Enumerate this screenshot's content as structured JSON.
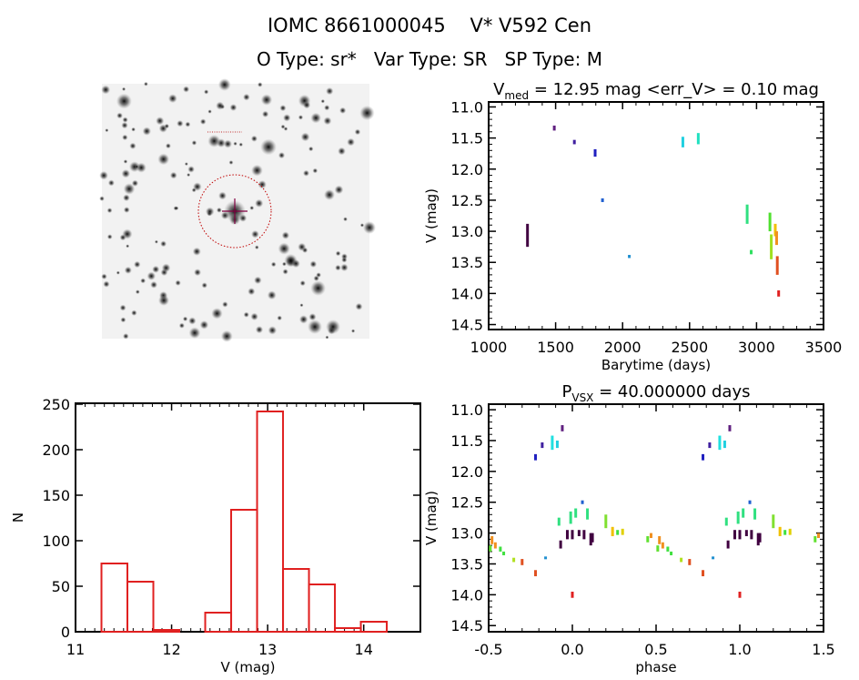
{
  "header": {
    "title": "IOMC 8661000045    V* V592 Cen",
    "subtitle": "O Type: sr*   Var Type: SR   SP Type: M"
  },
  "finder_image": {
    "description_colors": {
      "circle": "#c00000",
      "crosshair": "#800040"
    }
  },
  "chart_data": [
    {
      "type": "bar",
      "id": "histogram",
      "xlabel": "V (mag)",
      "ylabel": "N",
      "xlim": [
        11,
        14.59
      ],
      "ylim": [
        0,
        251
      ],
      "xticks": [
        "11",
        "12",
        "13",
        "14"
      ],
      "yticks": [
        "0",
        "50",
        "100",
        "150",
        "200",
        "250"
      ],
      "bin_edges": [
        11.27,
        11.54,
        11.81,
        12.08,
        12.35,
        12.62,
        12.89,
        13.16,
        13.43,
        13.7,
        13.97,
        14.24
      ],
      "values": [
        75,
        55,
        2,
        0,
        21,
        134,
        242,
        69,
        52,
        4,
        11
      ],
      "color": "#e02020"
    },
    {
      "type": "scatter",
      "id": "lightcurve",
      "title_main": "V",
      "title_sub": "med",
      "title_rest": " = 12.95 mag <err_V> = 0.10 mag",
      "xlabel": "Barytime (days)",
      "ylabel": "V (mag)",
      "xlim": [
        1000,
        3500
      ],
      "ylim": [
        10.92,
        14.58
      ],
      "y_inverted": true,
      "xticks": [
        "1000",
        "1500",
        "2000",
        "2500",
        "3000",
        "3500"
      ],
      "yticks": [
        "11.0",
        "11.5",
        "12.0",
        "12.5",
        "13.0",
        "13.5",
        "14.0",
        "14.5"
      ],
      "points": [
        {
          "t": 1290,
          "vmin": 12.88,
          "vmax": 13.25,
          "color": "#400040"
        },
        {
          "t": 1490,
          "vmin": 11.3,
          "vmax": 11.38,
          "color": "#602080"
        },
        {
          "t": 1640,
          "vmin": 11.53,
          "vmax": 11.6,
          "color": "#4020a0"
        },
        {
          "t": 1795,
          "vmin": 11.68,
          "vmax": 11.8,
          "color": "#2020c0"
        },
        {
          "t": 1850,
          "vmin": 12.47,
          "vmax": 12.53,
          "color": "#2060d0"
        },
        {
          "t": 2050,
          "vmin": 13.38,
          "vmax": 13.43,
          "color": "#2090d0"
        },
        {
          "t": 2450,
          "vmin": 11.48,
          "vmax": 11.65,
          "color": "#20d0e0"
        },
        {
          "t": 2565,
          "vmin": 11.42,
          "vmax": 11.6,
          "color": "#20e0c0"
        },
        {
          "t": 2930,
          "vmin": 12.57,
          "vmax": 12.88,
          "color": "#30e080"
        },
        {
          "t": 2960,
          "vmin": 13.3,
          "vmax": 13.37,
          "color": "#30e060"
        },
        {
          "t": 3100,
          "vmin": 12.7,
          "vmax": 13.0,
          "color": "#50e030"
        },
        {
          "t": 3110,
          "vmin": 13.05,
          "vmax": 13.45,
          "color": "#a0e020"
        },
        {
          "t": 3140,
          "vmin": 12.88,
          "vmax": 13.08,
          "color": "#f0c000"
        },
        {
          "t": 3150,
          "vmin": 13.0,
          "vmax": 13.22,
          "color": "#f09020"
        },
        {
          "t": 3155,
          "vmin": 13.4,
          "vmax": 13.7,
          "color": "#e05020"
        },
        {
          "t": 3165,
          "vmin": 13.95,
          "vmax": 14.05,
          "color": "#e02020"
        }
      ]
    },
    {
      "type": "scatter",
      "id": "phased",
      "title_main": "P",
      "title_sub": "VSX",
      "title_rest": " = 40.000000 days",
      "xlabel": "phase",
      "ylabel": "V (mag)",
      "xlim": [
        -0.5,
        1.5
      ],
      "ylim": [
        10.91,
        14.6
      ],
      "y_inverted": true,
      "xticks": [
        "-0.5",
        "0.0",
        "0.5",
        "1.0",
        "1.5"
      ],
      "yticks": [
        "11.0",
        "11.5",
        "12.0",
        "12.5",
        "13.0",
        "13.5",
        "14.0",
        "14.5"
      ],
      "points": [
        {
          "p": 0.78,
          "vmin": 11.72,
          "vmax": 11.82,
          "color": "#2020c0"
        },
        {
          "p": 0.82,
          "vmin": 11.53,
          "vmax": 11.62,
          "color": "#4020a0"
        },
        {
          "p": 0.88,
          "vmin": 11.42,
          "vmax": 11.65,
          "color": "#20e0e0"
        },
        {
          "p": 0.91,
          "vmin": 11.5,
          "vmax": 11.62,
          "color": "#20d0e0"
        },
        {
          "p": 0.94,
          "vmin": 11.25,
          "vmax": 11.35,
          "color": "#602080"
        },
        {
          "p": 0.84,
          "vmin": 13.38,
          "vmax": 13.42,
          "color": "#2090d0"
        },
        {
          "p": 0.06,
          "vmin": 12.47,
          "vmax": 12.53,
          "color": "#2060d0"
        },
        {
          "p": 0.93,
          "vmin": 13.12,
          "vmax": 13.25,
          "color": "#400040"
        },
        {
          "p": 0.97,
          "vmin": 12.95,
          "vmax": 13.1,
          "color": "#400040"
        },
        {
          "p": 0.0,
          "vmin": 12.95,
          "vmax": 13.1,
          "color": "#400040"
        },
        {
          "p": 0.04,
          "vmin": 12.95,
          "vmax": 13.05,
          "color": "#400040"
        },
        {
          "p": 0.07,
          "vmin": 12.95,
          "vmax": 13.1,
          "color": "#400040"
        },
        {
          "p": 0.11,
          "vmin": 13.0,
          "vmax": 13.2,
          "color": "#400040"
        },
        {
          "p": 0.12,
          "vmin": 13.0,
          "vmax": 13.15,
          "color": "#400040"
        },
        {
          "p": 0.92,
          "vmin": 12.75,
          "vmax": 12.88,
          "color": "#30e080"
        },
        {
          "p": 0.99,
          "vmin": 12.65,
          "vmax": 12.85,
          "color": "#30e080"
        },
        {
          "p": 0.02,
          "vmin": 12.6,
          "vmax": 12.75,
          "color": "#30e080"
        },
        {
          "p": 0.09,
          "vmin": 12.6,
          "vmax": 12.78,
          "color": "#30e080"
        },
        {
          "p": 0.0,
          "vmin": 13.95,
          "vmax": 14.05,
          "color": "#e02020"
        },
        {
          "p": 0.2,
          "vmin": 12.7,
          "vmax": 12.92,
          "color": "#80e030"
        },
        {
          "p": 0.24,
          "vmin": 12.9,
          "vmax": 13.05,
          "color": "#f0c000"
        },
        {
          "p": 0.27,
          "vmin": 12.95,
          "vmax": 13.03,
          "color": "#40e040"
        },
        {
          "p": 0.3,
          "vmin": 12.93,
          "vmax": 13.03,
          "color": "#e0d000"
        },
        {
          "p": 0.45,
          "vmin": 13.05,
          "vmax": 13.15,
          "color": "#60e030"
        },
        {
          "p": 0.47,
          "vmin": 13.0,
          "vmax": 13.08,
          "color": "#f09020"
        },
        {
          "p": 0.52,
          "vmin": 13.05,
          "vmax": 13.18,
          "color": "#f09020"
        },
        {
          "p": 0.54,
          "vmin": 13.15,
          "vmax": 13.25,
          "color": "#f09020"
        },
        {
          "p": 0.51,
          "vmin": 13.2,
          "vmax": 13.3,
          "color": "#60e030"
        },
        {
          "p": 0.57,
          "vmin": 13.22,
          "vmax": 13.3,
          "color": "#40e040"
        },
        {
          "p": 0.59,
          "vmin": 13.3,
          "vmax": 13.36,
          "color": "#40e040"
        },
        {
          "p": 0.65,
          "vmin": 13.4,
          "vmax": 13.47,
          "color": "#b0e020"
        },
        {
          "p": 0.7,
          "vmin": 13.42,
          "vmax": 13.52,
          "color": "#e05020"
        },
        {
          "p": 0.78,
          "vmin": 13.6,
          "vmax": 13.7,
          "color": "#e05020"
        }
      ]
    }
  ]
}
